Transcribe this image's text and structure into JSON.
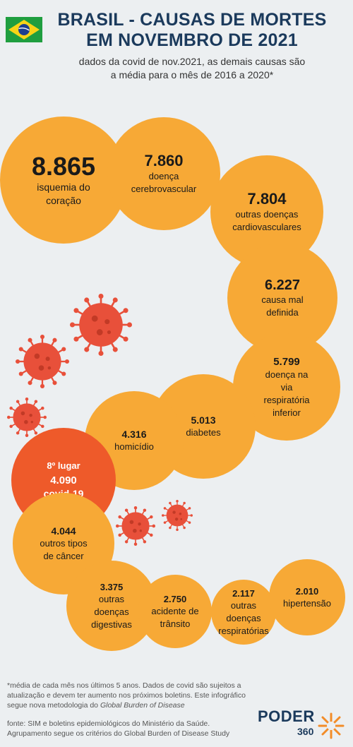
{
  "header": {
    "title_line1": "BRASIL - CAUSAS DE MORTES",
    "title_line2": "EM NOVEMBRO DE 2021",
    "subtitle_line1": "dados da covid de nov.2021, as demais causas são",
    "subtitle_line2": "a média para o mês de 2016 a 2020*"
  },
  "chart_data": {
    "type": "bubble",
    "title": "BRASIL - CAUSAS DE MORTES EM NOVEMBRO DE 2021",
    "items": [
      {
        "value": "8.865",
        "label": "isquemia do\ncoração",
        "value_num": 8865
      },
      {
        "value": "7.860",
        "label": "doença\ncerebrovascular",
        "value_num": 7860
      },
      {
        "value": "7.804",
        "label": "outras doenças\ncardiovasculares",
        "value_num": 7804
      },
      {
        "value": "6.227",
        "label": "causa mal\ndefinida",
        "value_num": 6227
      },
      {
        "value": "5.799",
        "label": "doença na\nvia\nrespiratória\ninferior",
        "value_num": 5799
      },
      {
        "value": "5.013",
        "label": "diabetes",
        "value_num": 5013
      },
      {
        "value": "4.316",
        "label": "homicídio",
        "value_num": 4316
      },
      {
        "value": "4.090",
        "label": "covid-19",
        "rank": "8º lugar",
        "value_num": 4090,
        "highlight": true
      },
      {
        "value": "4.044",
        "label": "outros tipos\nde câncer",
        "value_num": 4044
      },
      {
        "value": "3.375",
        "label": "outras\ndoenças\ndigestivas",
        "value_num": 3375
      },
      {
        "value": "2.750",
        "label": "acidente de\ntrânsito",
        "value_num": 2750
      },
      {
        "value": "2.117",
        "label": "outras\ndoenças\nrespiratórias",
        "value_num": 2117
      },
      {
        "value": "2.010",
        "label": "hipertensão",
        "value_num": 2010
      }
    ]
  },
  "colors": {
    "bubble": "#f7a936",
    "highlight": "#ee5a2a",
    "title": "#1b3a5c",
    "virus": "#e8503a",
    "background": "#eceff1"
  },
  "footnote": {
    "text": "*média de cada mês nos últimos 5 anos. Dados de covid são sujeitos a atualização e devem ter aumento nos próximos boletins. Este infográfico segue nova metodologia do ",
    "italic": "Global Burden of Disease"
  },
  "source": {
    "text": "fonte: SIM e boletins epidemiológicos do Ministério da Saúde. Agrupamento segue os critérios do Global Burden of Disease Study"
  },
  "logo": {
    "name": "PODER",
    "number": "360"
  },
  "icons": [
    "brazil-flag-icon",
    "virus-icon",
    "poder360-logo-icon"
  ]
}
